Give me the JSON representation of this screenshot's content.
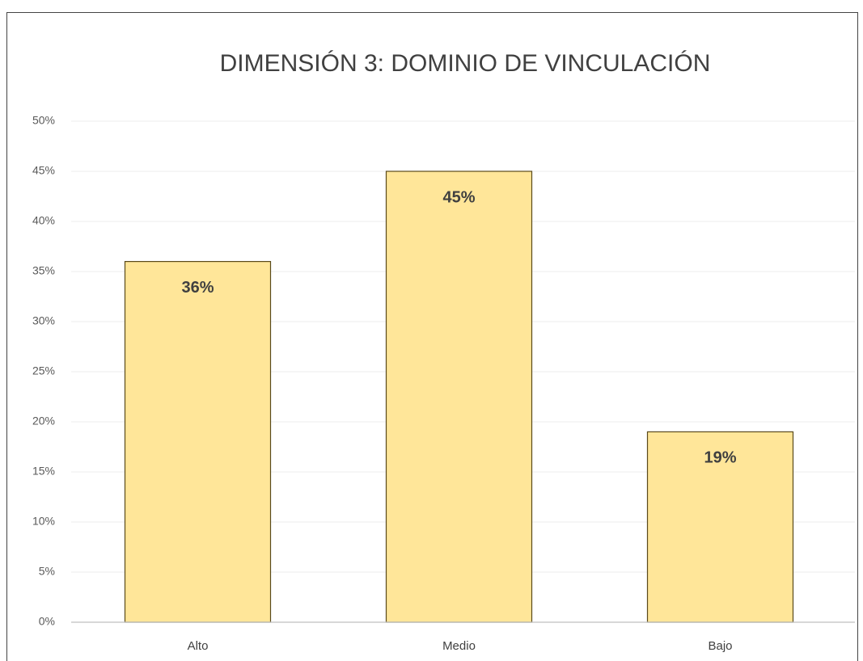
{
  "chart_data": {
    "type": "bar",
    "title": "DIMENSIÓN 3: DOMINIO DE VINCULACIÓN",
    "categories": [
      "Alto",
      "Medio",
      "Bajo"
    ],
    "values": [
      36,
      45,
      19
    ],
    "value_labels": [
      "36%",
      "45%",
      "19%"
    ],
    "color": "#ffe699",
    "ylim": [
      0,
      50
    ],
    "yticks": [
      {
        "value": 0,
        "label": "0%"
      },
      {
        "value": 5,
        "label": "5%"
      },
      {
        "value": 10,
        "label": "10%"
      },
      {
        "value": 15,
        "label": "15%"
      },
      {
        "value": 20,
        "label": "20%"
      },
      {
        "value": 25,
        "label": "25%"
      },
      {
        "value": 30,
        "label": "30%"
      },
      {
        "value": 35,
        "label": "35%"
      },
      {
        "value": 40,
        "label": "40%"
      },
      {
        "value": 45,
        "label": "45%"
      },
      {
        "value": 50,
        "label": "50%"
      }
    ],
    "grid": true
  }
}
